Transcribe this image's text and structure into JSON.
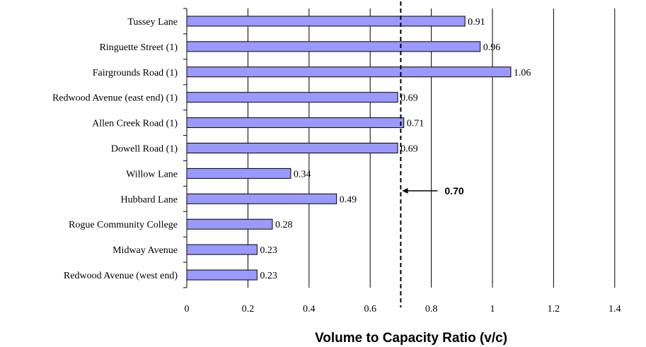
{
  "colors": {
    "bar_fill": "#9999ff",
    "bar_stroke": "#000000",
    "grid": "#000000",
    "background": "#ffffff"
  },
  "chart_data": {
    "type": "bar",
    "orientation": "horizontal",
    "categories": [
      "Tussey Lane",
      "Ringuette Street (1)",
      "Fairgrounds Road (1)",
      "Redwood Avenue (east end) (1)",
      "Allen Creek Road (1)",
      "Dowell Road (1)",
      "Willow Lane",
      "Hubbard Lane",
      "Rogue Community College",
      "Midway Avenue",
      "Redwood Avenue (west end)"
    ],
    "values": [
      0.91,
      0.96,
      1.06,
      0.69,
      0.71,
      0.69,
      0.34,
      0.49,
      0.28,
      0.23,
      0.23
    ],
    "data_labels": [
      "0.91",
      "0.96",
      "1.06",
      "0.69",
      "0.71",
      "0.69",
      "0.34",
      "0.49",
      "0.28",
      "0.23",
      "0.23"
    ],
    "xlabel": "Volume to Capacity Ratio (v/c)",
    "xlim": [
      0,
      1.5
    ],
    "xticks": [
      0,
      0.2,
      0.4,
      0.6,
      0.8,
      1,
      1.2,
      1.4
    ],
    "xtick_labels": [
      "0",
      "0.2",
      "0.4",
      "0.6",
      "0.8",
      "1",
      "1.2",
      "1.4"
    ],
    "grid": "vertical",
    "reference_line": {
      "value": 0.7,
      "style": "dashed",
      "label": "0.70",
      "arrow": "left"
    }
  }
}
